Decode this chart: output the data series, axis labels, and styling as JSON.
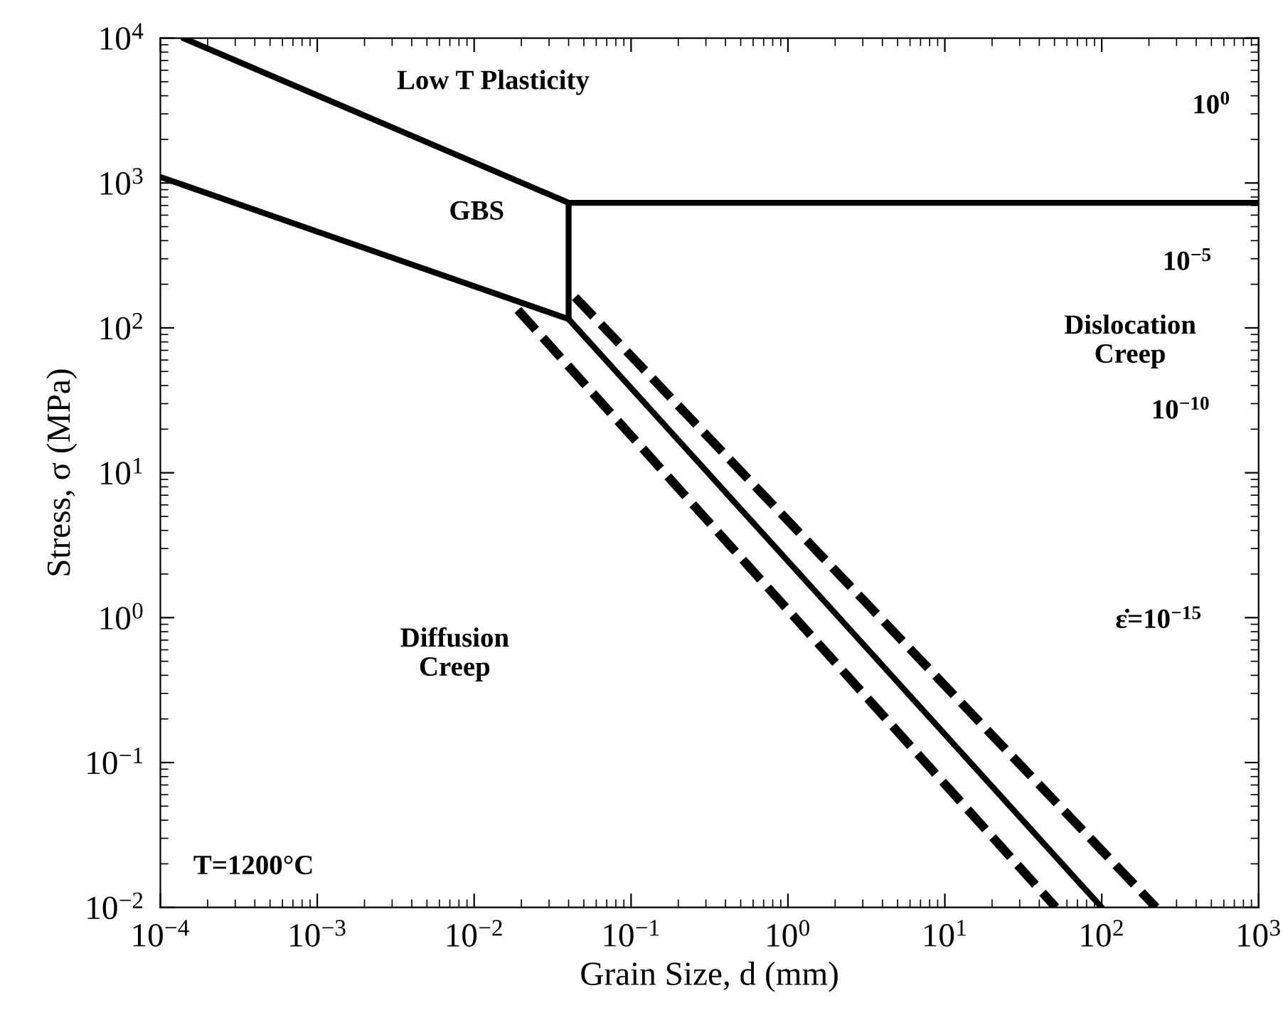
{
  "chart_data": {
    "type": "line",
    "xlabel": "Grain Size, d (mm)",
    "ylabel": "Stress, σ (MPa)",
    "log": "xy",
    "grid": false,
    "legend": false,
    "marker": "none",
    "xlim": [
      0.0001,
      1000
    ],
    "ylim": [
      0.01,
      10000
    ],
    "xticks": [
      {
        "value": 0.0001,
        "label": "10$^{−4}$"
      },
      {
        "value": 0.001,
        "label": "10$^{−3}$"
      },
      {
        "value": 0.01,
        "label": "10$^{−2}$"
      },
      {
        "value": 0.1,
        "label": "10$^{−1}$"
      },
      {
        "value": 1,
        "label": "10$^{0}$"
      },
      {
        "value": 10,
        "label": "10$^{1}$"
      },
      {
        "value": 100,
        "label": "10$^{2}$"
      },
      {
        "value": 1000,
        "label": "10$^{3}$"
      }
    ],
    "yticks": [
      {
        "value": 0.01,
        "label": "10$^{−2}$"
      },
      {
        "value": 0.1,
        "label": "10$^{−1}$"
      },
      {
        "value": 1,
        "label": "10$^{0}$"
      },
      {
        "value": 10,
        "label": "10$^{1}$"
      },
      {
        "value": 100,
        "label": "10$^{2}$"
      },
      {
        "value": 1000,
        "label": "10$^{3}$"
      },
      {
        "value": 10000,
        "label": "10$^{4}$"
      }
    ],
    "series": [
      {
        "color": "#000000",
        "line_style": "solid",
        "x": [
          0.00014,
          0.04,
          1000
        ],
        "values": [
          10000,
          730,
          730
        ]
      },
      {
        "color": "#000000",
        "line_style": "solid",
        "x": [
          0.0001,
          0.04,
          100
        ],
        "values": [
          1100,
          115,
          0.01
        ]
      },
      {
        "color": "#000000",
        "line_style": "solid",
        "x": [
          0.04,
          0.04
        ],
        "values": [
          115,
          730
        ]
      },
      {
        "color": "#000000",
        "line_style": "dashed",
        "x": [
          0.044,
          222
        ],
        "values": [
          163,
          0.01
        ]
      },
      {
        "color": "#000000",
        "line_style": "dashed",
        "x": [
          0.019,
          51
        ],
        "values": [
          133,
          0.01
        ]
      }
    ],
    "annotations": [
      "Low T Plasticity",
      "GBS",
      "10$^{0}$",
      "10$^{−5}$",
      "Dislocation\nCreep",
      "10$^{−10}$",
      "ε̇=10$^{−15}$",
      "Diffusion\nCreep",
      "T=1200°C"
    ]
  }
}
